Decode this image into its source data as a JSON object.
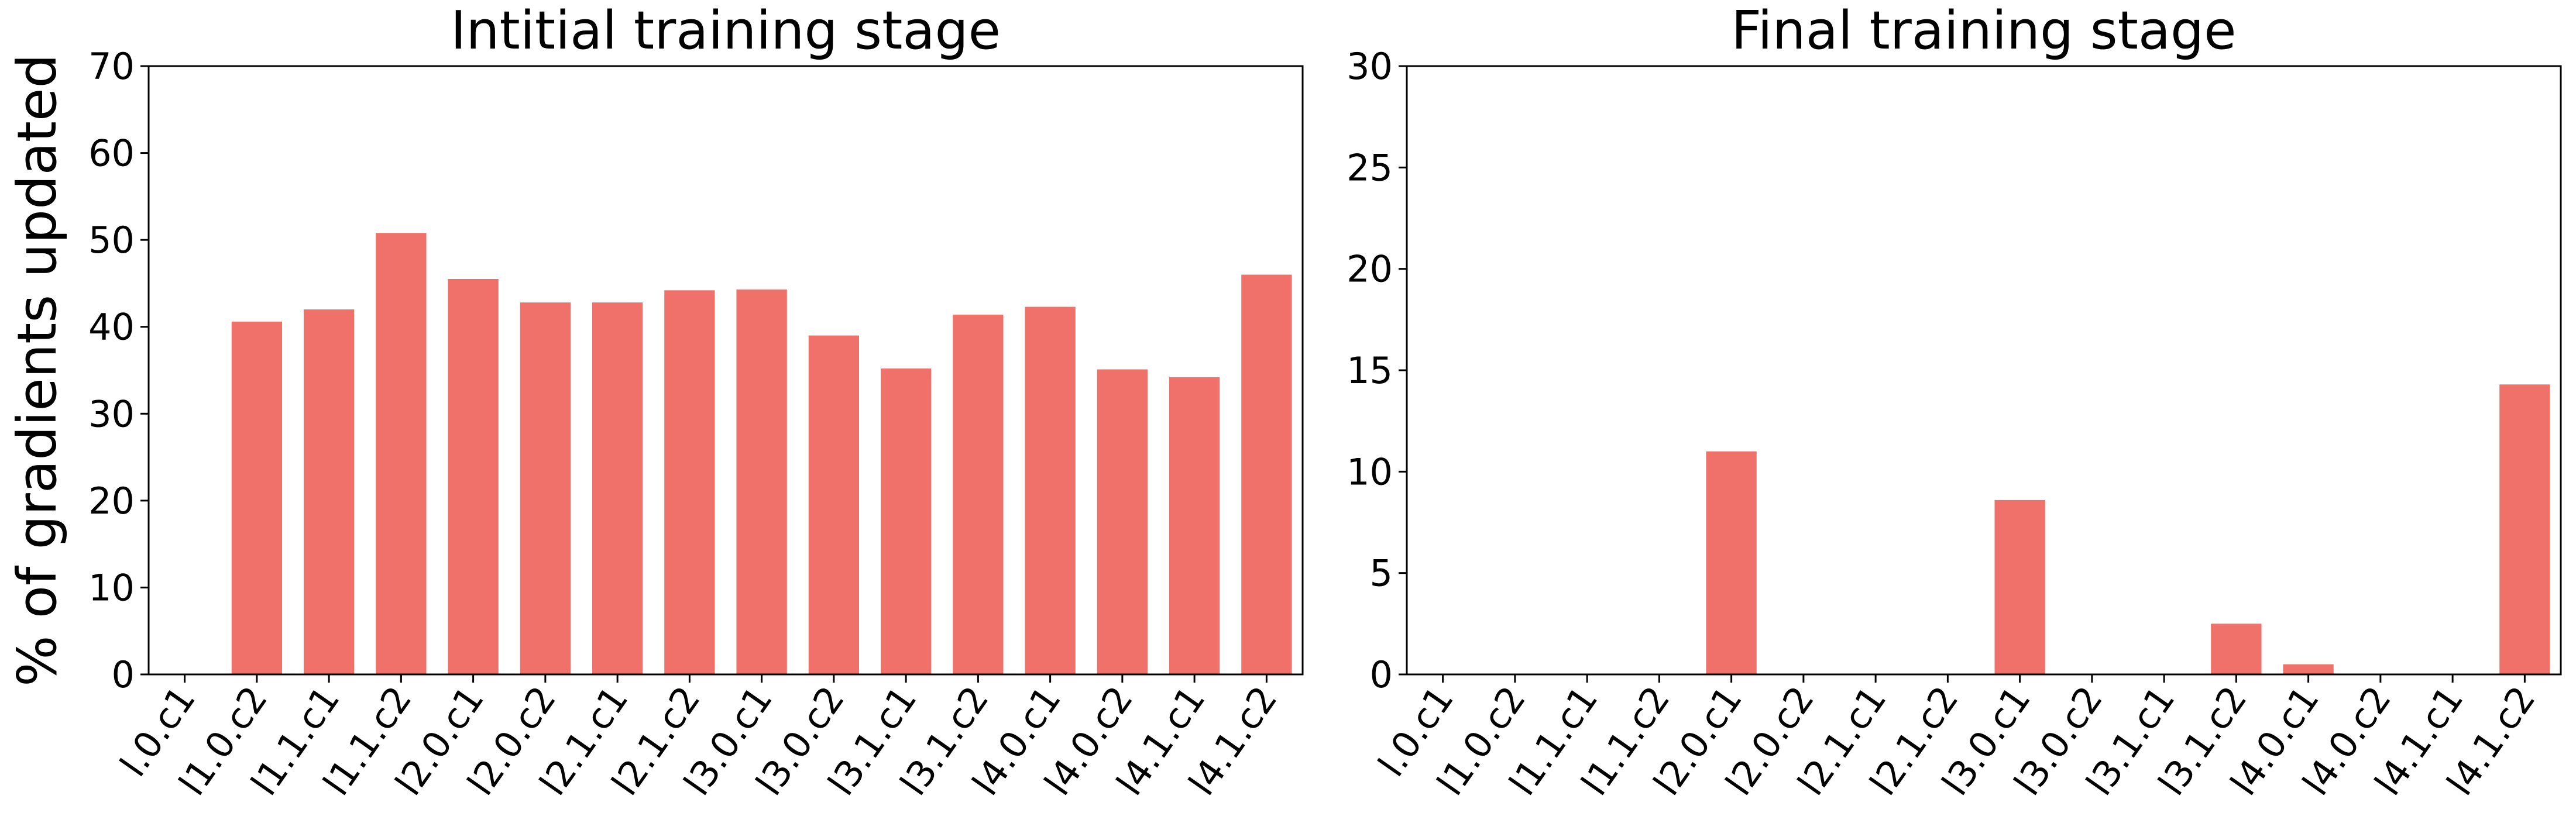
{
  "chart_data": [
    {
      "type": "bar",
      "title": "Intitial training stage",
      "y_label": "% of gradients updated",
      "categories": [
        "l.0.c1",
        "l1.0.c2",
        "l1.1.c1",
        "l1.1.c2",
        "l2.0.c1",
        "l2.0.c2",
        "l2.1.c1",
        "l2.1.c2",
        "l3.0.c1",
        "l3.0.c2",
        "l3.1.c1",
        "l3.1.c2",
        "l4.0.c1",
        "l4.0.c2",
        "l4.1.c1",
        "l4.1.c2"
      ],
      "values": [
        0,
        40.6,
        42,
        50.8,
        45.5,
        42.8,
        42.8,
        44.2,
        44.3,
        39,
        35.2,
        41.4,
        42.3,
        35.1,
        34.2,
        46
      ],
      "color": "#ef7169",
      "ylim": [
        0,
        70
      ],
      "yticks": [
        0,
        10,
        20,
        30,
        40,
        50,
        60,
        70
      ],
      "grid": false
    },
    {
      "type": "bar",
      "title": "Final training stage",
      "categories": [
        "l.0.c1",
        "l1.0.c2",
        "l1.1.c1",
        "l1.1.c2",
        "l2.0.c1",
        "l2.0.c2",
        "l2.1.c1",
        "l2.1.c2",
        "l3.0.c1",
        "l3.0.c2",
        "l3.1.c1",
        "l3.1.c2",
        "l4.0.c1",
        "l4.0.c2",
        "l4.1.c1",
        "l4.1.c2"
      ],
      "values": [
        0,
        0,
        0,
        0,
        11,
        0,
        0,
        0,
        8.6,
        0,
        0,
        2.5,
        0.5,
        0,
        0,
        14.3
      ],
      "color": "#ef7169",
      "ylim": [
        0,
        30
      ],
      "yticks": [
        0,
        5,
        10,
        15,
        20,
        25,
        30
      ],
      "grid": false
    }
  ]
}
